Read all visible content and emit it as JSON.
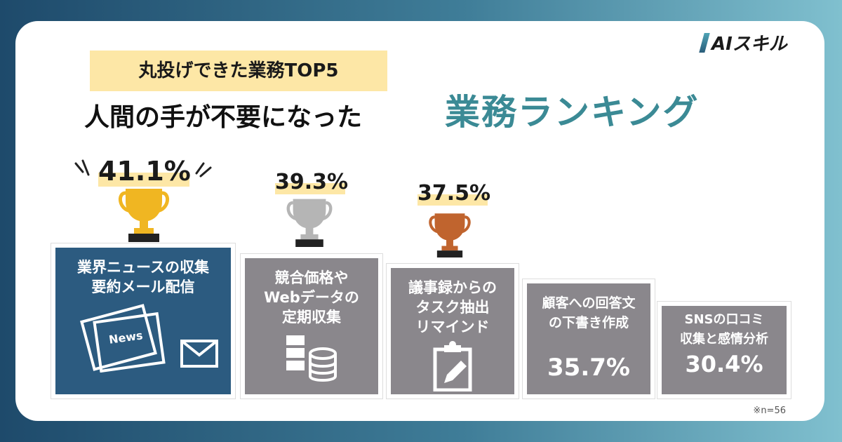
{
  "logo": "AIスキル",
  "header": {
    "tag": "丸投げできた業務TOP5",
    "title_main": "人間の手が不要になった",
    "title_accent": "業務ランキング"
  },
  "ranking": [
    {
      "rank": 1,
      "label": "業界ニュースの収集\n要約メール配信",
      "percent": "41.1%",
      "value": 41.1,
      "trophy": "gold",
      "icon": "newspaper-mail-icon"
    },
    {
      "rank": 2,
      "label": "競合価格や\nWebデータの\n定期収集",
      "percent": "39.3%",
      "value": 39.3,
      "trophy": "silver",
      "icon": "server-database-icon"
    },
    {
      "rank": 3,
      "label": "議事録からの\nタスク抽出\nリマインド",
      "percent": "37.5%",
      "value": 37.5,
      "trophy": "bronze",
      "icon": "clipboard-pencil-icon"
    },
    {
      "rank": 4,
      "label": "顧客への回答文\nの下書き作成",
      "percent": "35.7%",
      "value": 35.7
    },
    {
      "rank": 5,
      "label": "SNSの口コミ\n収集と感情分析",
      "percent": "30.4%",
      "value": 30.4
    }
  ],
  "note": "※n=56",
  "colors": {
    "accent": "#3b8a95",
    "first": "#2c5b80",
    "others": "#8a878c",
    "highlight": "#fde7a6",
    "gold": "#f0b622",
    "silver": "#b5b5b5",
    "bronze": "#c0642e"
  }
}
